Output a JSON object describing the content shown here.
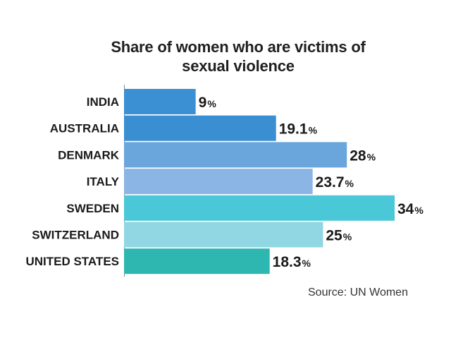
{
  "chart_data": {
    "type": "bar",
    "orientation": "horizontal",
    "title": "Share of women who are victims of sexual violence",
    "title_lines": [
      "Share of women who are victims of",
      "sexual violence"
    ],
    "categories": [
      "INDIA",
      "AUSTRALIA",
      "DENMARK",
      "ITALY",
      "SWEDEN",
      "SWITZERLAND",
      "UNITED STATES"
    ],
    "values": [
      9,
      19.1,
      28,
      23.7,
      34,
      25,
      18.3
    ],
    "value_labels": [
      "9",
      "19.1",
      "28",
      "23.7",
      "34",
      "25",
      "18.3"
    ],
    "value_suffix": "%",
    "bar_colors": [
      "#3b8fd3",
      "#3a8ed2",
      "#6aa6dc",
      "#8ab5e4",
      "#4bc8d8",
      "#90d7e3",
      "#2eb7b0"
    ],
    "xlim": [
      0,
      34
    ],
    "grid": false,
    "legend": "none",
    "xlabel": "",
    "ylabel": ""
  },
  "source": "Source: UN Women"
}
